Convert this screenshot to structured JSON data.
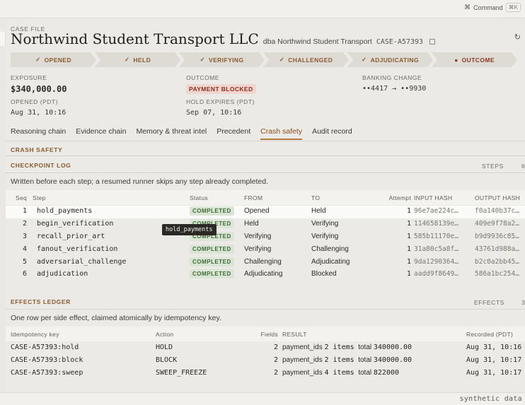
{
  "topbar": {
    "command_label": "Command",
    "command_shortcut": "⌘K",
    "command_icon": "command-icon"
  },
  "case": {
    "label": "CASE FILE",
    "title": "Northwind Student Transport LLC",
    "dba": "dba Northwind Student Transport",
    "id": "CASE-A57393"
  },
  "stepper": [
    {
      "glyph": "✓",
      "label": "OPENED"
    },
    {
      "glyph": "✓",
      "label": "HELD"
    },
    {
      "glyph": "✓",
      "label": "VERIFYING"
    },
    {
      "glyph": "✓",
      "label": "CHALLENGED"
    },
    {
      "glyph": "✓",
      "label": "ADJUDICATING"
    },
    {
      "glyph": "●",
      "label": "OUTCOME"
    }
  ],
  "summary": {
    "exposure_label": "EXPOSURE",
    "exposure_value": "$340,000.00",
    "outcome_label": "OUTCOME",
    "outcome_value": "PAYMENT BLOCKED",
    "banking_label": "BANKING CHANGE",
    "banking_value": "••4417 → ••9930",
    "opened_label": "OPENED (PDT)",
    "opened_value": "Aug 31, 10:16",
    "hold_label": "HOLD EXPIRES (PDT)",
    "hold_value": "Sep 07, 10:16"
  },
  "tabs": [
    "Reasoning chain",
    "Evidence chain",
    "Memory & threat intel",
    "Precedent",
    "Crash safety",
    "Audit record"
  ],
  "crash_safety": {
    "heading": "CRASH SAFETY",
    "checkpoint": {
      "heading": "CHECKPOINT LOG",
      "meta_label": "STEPS",
      "meta_value": "6",
      "description": "Written before each step; a resumed runner skips any step already completed.",
      "columns": [
        "Seq",
        "Step",
        "Status",
        "FROM",
        "TO",
        "Attempt",
        "INPUT HASH",
        "OUTPUT HASH"
      ],
      "rows": [
        {
          "seq": "1",
          "step": "hold_payments",
          "status": "COMPLETED",
          "from": "Opened",
          "to": "Held",
          "attempt": "1",
          "input_hash": "96e7ae224c…",
          "output_hash": "f0a140b37c…"
        },
        {
          "seq": "2",
          "step": "begin_verification",
          "status": "COMPLETED",
          "from": "Held",
          "to": "Verifying",
          "attempt": "1",
          "input_hash": "114658139e…",
          "output_hash": "409e9f78a2…"
        },
        {
          "seq": "3",
          "step": "recall_prior_art",
          "status": "COMPLETED",
          "from": "Verifying",
          "to": "Verifying",
          "attempt": "1",
          "input_hash": "585b11170e…",
          "output_hash": "b9d9936c85…"
        },
        {
          "seq": "4",
          "step": "fanout_verification",
          "status": "COMPLETED",
          "from": "Verifying",
          "to": "Challenging",
          "attempt": "1",
          "input_hash": "31a80c5a8f…",
          "output_hash": "43761d988a…"
        },
        {
          "seq": "5",
          "step": "adversarial_challenge",
          "status": "COMPLETED",
          "from": "Challenging",
          "to": "Adjudicating",
          "attempt": "1",
          "input_hash": "9da1290364…",
          "output_hash": "b2c0a2bb45…"
        },
        {
          "seq": "6",
          "step": "adjudication",
          "status": "COMPLETED",
          "from": "Adjudicating",
          "to": "Blocked",
          "attempt": "1",
          "input_hash": "aadd9f8649…",
          "output_hash": "586a1bc254…"
        }
      ],
      "tooltip": "hold_payments"
    },
    "effects": {
      "heading": "EFFECTS LEDGER",
      "meta_label": "EFFECTS",
      "meta_value": "3",
      "description": "One row per side effect, claimed atomically by idempotency key.",
      "columns": [
        "Idempotency key",
        "Action",
        "Fields",
        "RESULT",
        "Recorded (PDT)"
      ],
      "rows": [
        {
          "key": "CASE-A57393:hold",
          "action": "HOLD",
          "fields": "2",
          "r1": "payment_ids",
          "r2": "2 items",
          "r3": "total",
          "r4": "340000.00",
          "recorded": "Aug 31, 10:16"
        },
        {
          "key": "CASE-A57393:block",
          "action": "BLOCK",
          "fields": "2",
          "r1": "payment_ids",
          "r2": "2 items",
          "r3": "total",
          "r4": "340000.00",
          "recorded": "Aug 31, 10:17"
        },
        {
          "key": "CASE-A57393:sweep",
          "action": "SWEEP_FREEZE",
          "fields": "2",
          "r1": "payment_ids",
          "r2": "4 items",
          "r3": "total",
          "r4": "822000",
          "recorded": "Aug 31, 10:17"
        }
      ]
    }
  },
  "footer": {
    "note": "synthetic data"
  }
}
